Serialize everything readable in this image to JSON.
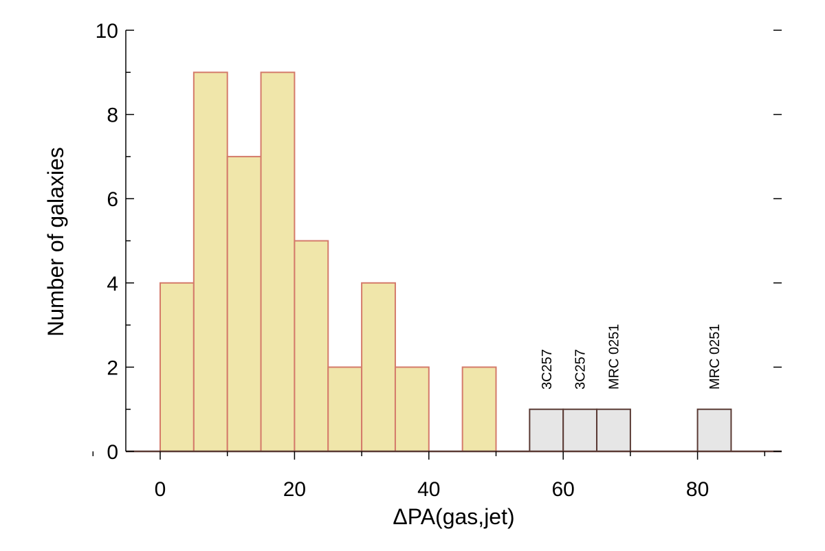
{
  "chart_data": {
    "type": "bar",
    "xlabel": "ΔPA(gas,jet)",
    "ylabel": "Number of galaxies",
    "xlim": [
      -10,
      93
    ],
    "ylim": [
      0,
      10
    ],
    "xticks": [
      "0",
      "20",
      "40",
      "60",
      "80"
    ],
    "yticks": [
      "0",
      "2",
      "4",
      "6",
      "8",
      "10"
    ],
    "bin_width": 5,
    "grid": false,
    "series": [
      {
        "color": "#f0e6aa",
        "edge_color": "#d47a6a",
        "bins": [
          {
            "x0": 0,
            "x1": 5,
            "value": 4
          },
          {
            "x0": 5,
            "x1": 10,
            "value": 9
          },
          {
            "x0": 10,
            "x1": 15,
            "value": 7
          },
          {
            "x0": 15,
            "x1": 20,
            "value": 9
          },
          {
            "x0": 20,
            "x1": 25,
            "value": 5
          },
          {
            "x0": 25,
            "x1": 30,
            "value": 2
          },
          {
            "x0": 30,
            "x1": 35,
            "value": 4
          },
          {
            "x0": 35,
            "x1": 40,
            "value": 2
          },
          {
            "x0": 45,
            "x1": 50,
            "value": 2
          }
        ]
      },
      {
        "color": "#e6e6e6",
        "edge_color": "#5a3a34",
        "bins": [
          {
            "x0": 55,
            "x1": 60,
            "value": 1
          },
          {
            "x0": 60,
            "x1": 65,
            "value": 1
          },
          {
            "x0": 65,
            "x1": 70,
            "value": 1
          },
          {
            "x0": 80,
            "x1": 85,
            "value": 1
          }
        ]
      }
    ],
    "annotations": [
      {
        "text": "3C257",
        "x": 57.5,
        "y": 1.5
      },
      {
        "text": "3C257",
        "x": 62.5,
        "y": 1.5
      },
      {
        "text": "MRC 0251",
        "x": 67.5,
        "y": 1.5
      },
      {
        "text": "MRC 0251",
        "x": 82.5,
        "y": 1.5
      }
    ]
  }
}
